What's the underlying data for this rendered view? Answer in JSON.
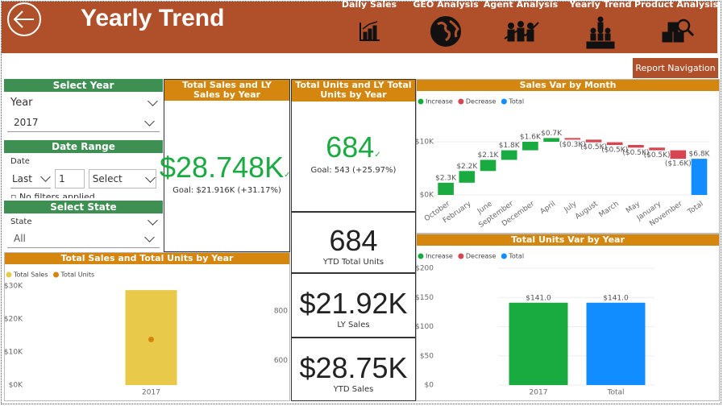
{
  "header": {
    "title": "Yearly Trend",
    "nav": [
      "Daily Sales",
      "GEO Analysis",
      "Agent Analysis",
      "Yearly Trend",
      "Product Analysis"
    ],
    "button": "Report Navigation"
  },
  "filters": {
    "year": {
      "title": "Select Year",
      "field": "Year",
      "value": "2017"
    },
    "date": {
      "title": "Date Range",
      "field": "Date",
      "mode": "Last",
      "count": "1",
      "unit": "Select",
      "note": "No filters applied"
    },
    "state": {
      "title": "Select State",
      "field": "State",
      "value": "All"
    }
  },
  "kpi": [
    {
      "title": "Total Sales and LY Sales by Year",
      "value": "$28.748K",
      "goal": "Goal: $21.916K (+31.17%)"
    },
    {
      "title": "Total Units and LY Total Units by Year",
      "value": "684",
      "goal": "Goal: 543 (+25.97%)"
    }
  ],
  "cards": [
    {
      "value": "684",
      "label": "YTD Total Units"
    },
    {
      "value": "$21.92K",
      "label": "LY Sales"
    },
    {
      "value": "$28.75K",
      "label": "YTD Sales"
    }
  ],
  "chart_data": [
    {
      "type": "waterfall",
      "title": "Sales Var by Month",
      "legend": [
        {
          "name": "Increase",
          "color": "#1aab40"
        },
        {
          "name": "Decrease",
          "color": "#d64550"
        },
        {
          "name": "Total",
          "color": "#118dff"
        }
      ],
      "categories": [
        "October",
        "February",
        "June",
        "September",
        "December",
        "April",
        "July",
        "August",
        "March",
        "May",
        "January",
        "November"
      ],
      "values": [
        2300,
        2200,
        2100,
        1800,
        1600,
        700,
        -300,
        -500,
        -500,
        -500,
        -500,
        -1600
      ],
      "value_labels": [
        "$2.3K",
        "$2.2K",
        "$2.1K",
        "$1.8K",
        "$1.6K",
        "$0.7K",
        "($0.3K)",
        "($0.5K)",
        "($0.5K)",
        "($0.5K)",
        "($0.5K)",
        "($1.6K)"
      ],
      "total": {
        "category": "Total",
        "value": 6800,
        "value_label": "$6.8K"
      },
      "ylim": [
        0,
        14000
      ],
      "yticks": [
        {
          "value": 0,
          "label": "$0K"
        },
        {
          "value": 10000,
          "label": "$10K"
        }
      ],
      "grid": true
    },
    {
      "type": "waterfall",
      "title": "Total Units Var by Year",
      "legend": [
        {
          "name": "Increase",
          "color": "#1aab40"
        },
        {
          "name": "Decrease",
          "color": "#d64550"
        },
        {
          "name": "Total",
          "color": "#118dff"
        }
      ],
      "categories": [
        "2017"
      ],
      "values": [
        141
      ],
      "value_labels": [
        "$141.0"
      ],
      "total": {
        "category": "Total",
        "value": 141,
        "value_label": "$141.0"
      },
      "ylim": [
        0,
        200
      ],
      "yticks": [
        {
          "value": 0,
          "label": "$0"
        },
        {
          "value": 50,
          "label": "$50"
        },
        {
          "value": 100,
          "label": "$100"
        },
        {
          "value": 150,
          "label": "$150"
        },
        {
          "value": 200,
          "label": "$200"
        }
      ],
      "grid": true
    },
    {
      "type": "bar-line",
      "title": "Total Sales and Total Units by Year",
      "categories": [
        "2017"
      ],
      "series": [
        {
          "name": "Total Sales",
          "color": "#e8c94a",
          "values": [
            28748
          ]
        },
        {
          "name": "Total Units",
          "color": "#d4850a",
          "values": [
            684
          ],
          "axis": "y2"
        }
      ],
      "ylim": [
        0,
        30000
      ],
      "yticks": [
        {
          "value": 0,
          "label": "$0K"
        },
        {
          "value": 10000,
          "label": "$10K"
        },
        {
          "value": 20000,
          "label": "$20K"
        },
        {
          "value": 30000,
          "label": "$30K"
        }
      ],
      "y2lim": [
        500,
        900
      ],
      "y2ticks": [
        600,
        800
      ],
      "grid": false
    }
  ]
}
